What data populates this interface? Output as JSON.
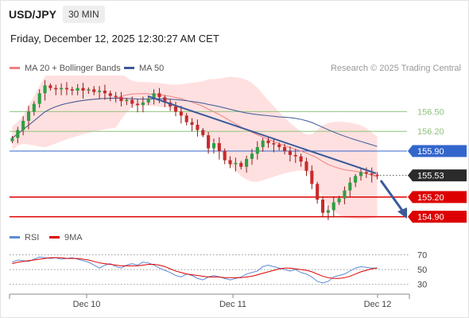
{
  "header": {
    "symbol": "USD/JPY",
    "timeframe": "30 MIN",
    "datetime": "Friday, December 12, 2025 12:30:27 AM CET"
  },
  "legend": {
    "ma20": "MA 20 + Bollinger Bands",
    "ma50": "MA 50",
    "research": "Research © 2025 Trading Central",
    "rsi": "RSI",
    "ma9": "9MA"
  },
  "colors": {
    "ma20": "#f08080",
    "ma50": "#3b5998",
    "bands": "#ffd6d6",
    "support_resistance": "#dd0000",
    "pivot_green": "#8fc47a",
    "blue_level": "#3366cc",
    "trendline": "#3a5a9a",
    "rsi": "#5b8bd6",
    "rsi_ma": "#dd0000"
  },
  "chart_data": [
    {
      "type": "candlestick",
      "title": "USD/JPY",
      "x_labels": [
        "Dec 10",
        "Dec 11",
        "Dec 12"
      ],
      "ylim": [
        154.75,
        157.05
      ],
      "current_price": 155.53,
      "levels": [
        {
          "value": 156.5,
          "label": "156.50",
          "style": "green-line"
        },
        {
          "value": 156.2,
          "label": "156.20",
          "style": "green-line"
        },
        {
          "value": 155.9,
          "label": "155.90",
          "style": "blue-box"
        },
        {
          "value": 155.53,
          "label": "155.53",
          "style": "current-price"
        },
        {
          "value": 155.2,
          "label": "155.20",
          "style": "red-box"
        },
        {
          "value": 154.9,
          "label": "154.90",
          "style": "red-box"
        }
      ],
      "close_series": [
        156.1,
        156.22,
        156.36,
        156.5,
        156.62,
        156.78,
        156.9,
        156.86,
        156.84,
        156.86,
        156.84,
        156.82,
        156.86,
        156.82,
        156.84,
        156.8,
        156.82,
        156.78,
        156.74,
        156.72,
        156.66,
        156.68,
        156.62,
        156.6,
        156.64,
        156.7,
        156.78,
        156.72,
        156.64,
        156.58,
        156.5,
        156.44,
        156.34,
        156.3,
        156.22,
        156.14,
        155.94,
        156.02,
        155.9,
        155.76,
        155.7,
        155.72,
        155.66,
        155.78,
        155.86,
        155.96,
        156.06,
        156.02,
        156.0,
        155.96,
        155.9,
        155.84,
        155.82,
        155.74,
        155.6,
        155.4,
        155.16,
        154.96,
        155.0,
        155.12,
        155.18,
        155.3,
        155.42,
        155.52,
        155.58,
        155.56,
        155.54,
        155.52
      ]
    },
    {
      "type": "line",
      "title": "RSI",
      "ylim": [
        20,
        78
      ],
      "yticks": [
        70,
        50,
        30
      ],
      "series": [
        {
          "name": "RSI",
          "values": [
            60,
            63,
            62,
            61,
            64,
            67,
            66,
            65,
            66,
            64,
            65,
            66,
            64,
            62,
            60,
            56,
            52,
            56,
            58,
            54,
            52,
            56,
            58,
            56,
            60,
            59,
            56,
            52,
            49,
            46,
            42,
            40,
            44,
            42,
            38,
            36,
            40,
            42,
            40,
            38,
            36,
            38,
            40,
            44,
            46,
            48,
            54,
            56,
            54,
            52,
            50,
            48,
            50,
            46,
            44,
            40,
            34,
            32,
            34,
            40,
            42,
            44,
            48,
            52,
            54,
            53,
            52,
            52
          ]
        },
        {
          "name": "9MA",
          "values": [
            58,
            60,
            61,
            62,
            63,
            64,
            65,
            66,
            66,
            66,
            65,
            65,
            65,
            64,
            63,
            61,
            59,
            58,
            57,
            56,
            55,
            55,
            55,
            55,
            56,
            57,
            57,
            56,
            54,
            51,
            48,
            46,
            44,
            43,
            42,
            41,
            40,
            40,
            40,
            39,
            39,
            39,
            39,
            40,
            41,
            43,
            45,
            47,
            49,
            51,
            52,
            52,
            51,
            50,
            49,
            47,
            44,
            41,
            39,
            38,
            38,
            39,
            41,
            44,
            47,
            49,
            51,
            52
          ]
        }
      ]
    }
  ]
}
